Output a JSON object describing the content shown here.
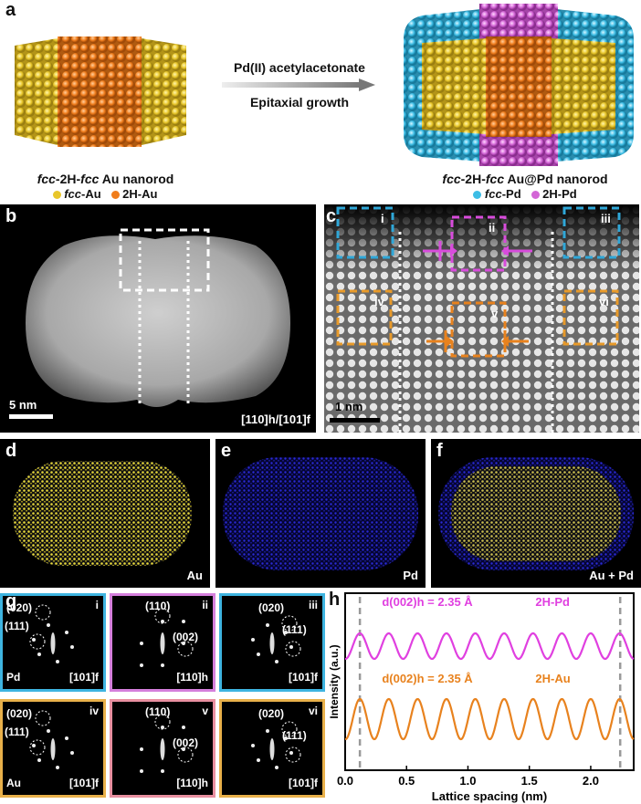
{
  "panel_a": {
    "letter": "a",
    "reaction_top": "Pd(II) acetylacetonate",
    "reaction_bottom": "Epitaxial growth",
    "left_title_1": "fcc",
    "left_title_2": "-2H-",
    "left_title_3": "fcc",
    "left_title_4": " Au nanorod",
    "left_legend_1_i": "fcc",
    "left_legend_1": "-Au",
    "left_legend_2": "2H-Au",
    "right_title_1": "fcc",
    "right_title_2": "-2H-",
    "right_title_3": "fcc",
    "right_title_4": " Au@Pd nanorod",
    "right_legend_1_i": "fcc",
    "right_legend_1": "-Pd",
    "right_legend_2": "2H-Pd",
    "colors": {
      "fcc_au": "#e8c62a",
      "two_h_au": "#f07d1c",
      "fcc_pd": "#3dbde5",
      "two_h_pd": "#d366d6"
    }
  },
  "panel_b": {
    "letter": "b",
    "scale": "5 nm",
    "zone": "[110]h/[101]f"
  },
  "panel_c": {
    "letter": "c",
    "scale": "1 nm",
    "regions": [
      "i",
      "ii",
      "iii",
      "iv",
      "v",
      "vi"
    ]
  },
  "panel_d": {
    "letter": "d",
    "label": "Au"
  },
  "panel_e": {
    "letter": "e",
    "label": "Pd"
  },
  "panel_f": {
    "letter": "f",
    "label": "Au + Pd"
  },
  "panel_g": {
    "letter": "g",
    "cells": [
      {
        "num": "i",
        "spots": [
          "(020)",
          "(111)"
        ],
        "elem": "Pd",
        "zone": "[101]f"
      },
      {
        "num": "ii",
        "spots": [
          "(110)",
          "(002)"
        ],
        "elem": "",
        "zone": "[110]h"
      },
      {
        "num": "iii",
        "spots": [
          "(020)",
          "(111)"
        ],
        "elem": "",
        "zone": "[101]f"
      },
      {
        "num": "iv",
        "spots": [
          "(020)",
          "(111)"
        ],
        "elem": "Au",
        "zone": "[101]f"
      },
      {
        "num": "v",
        "spots": [
          "(110)",
          "(002)"
        ],
        "elem": "",
        "zone": "[110]h"
      },
      {
        "num": "vi",
        "spots": [
          "(020)",
          "(111)"
        ],
        "elem": "",
        "zone": "[101]f"
      }
    ]
  },
  "chart_data": {
    "type": "line",
    "letter": "h",
    "xlabel": "Lattice spacing (nm)",
    "ylabel": "Intensity (a.u.)",
    "xlim": [
      0,
      2.35
    ],
    "xticks": [
      "0.0",
      "0.5",
      "1.0",
      "1.5",
      "2.0"
    ],
    "dashed_x": [
      0.12,
      2.24
    ],
    "series": [
      {
        "name": "2H-Pd",
        "annotation": "d(002)h = 2.35 Å",
        "color": "#e040e0",
        "peaks": 10,
        "period": 0.235
      },
      {
        "name": "2H-Au",
        "annotation": "d(002)h = 2.35 Å",
        "color": "#e8821e",
        "peaks": 10,
        "period": 0.235
      }
    ]
  }
}
